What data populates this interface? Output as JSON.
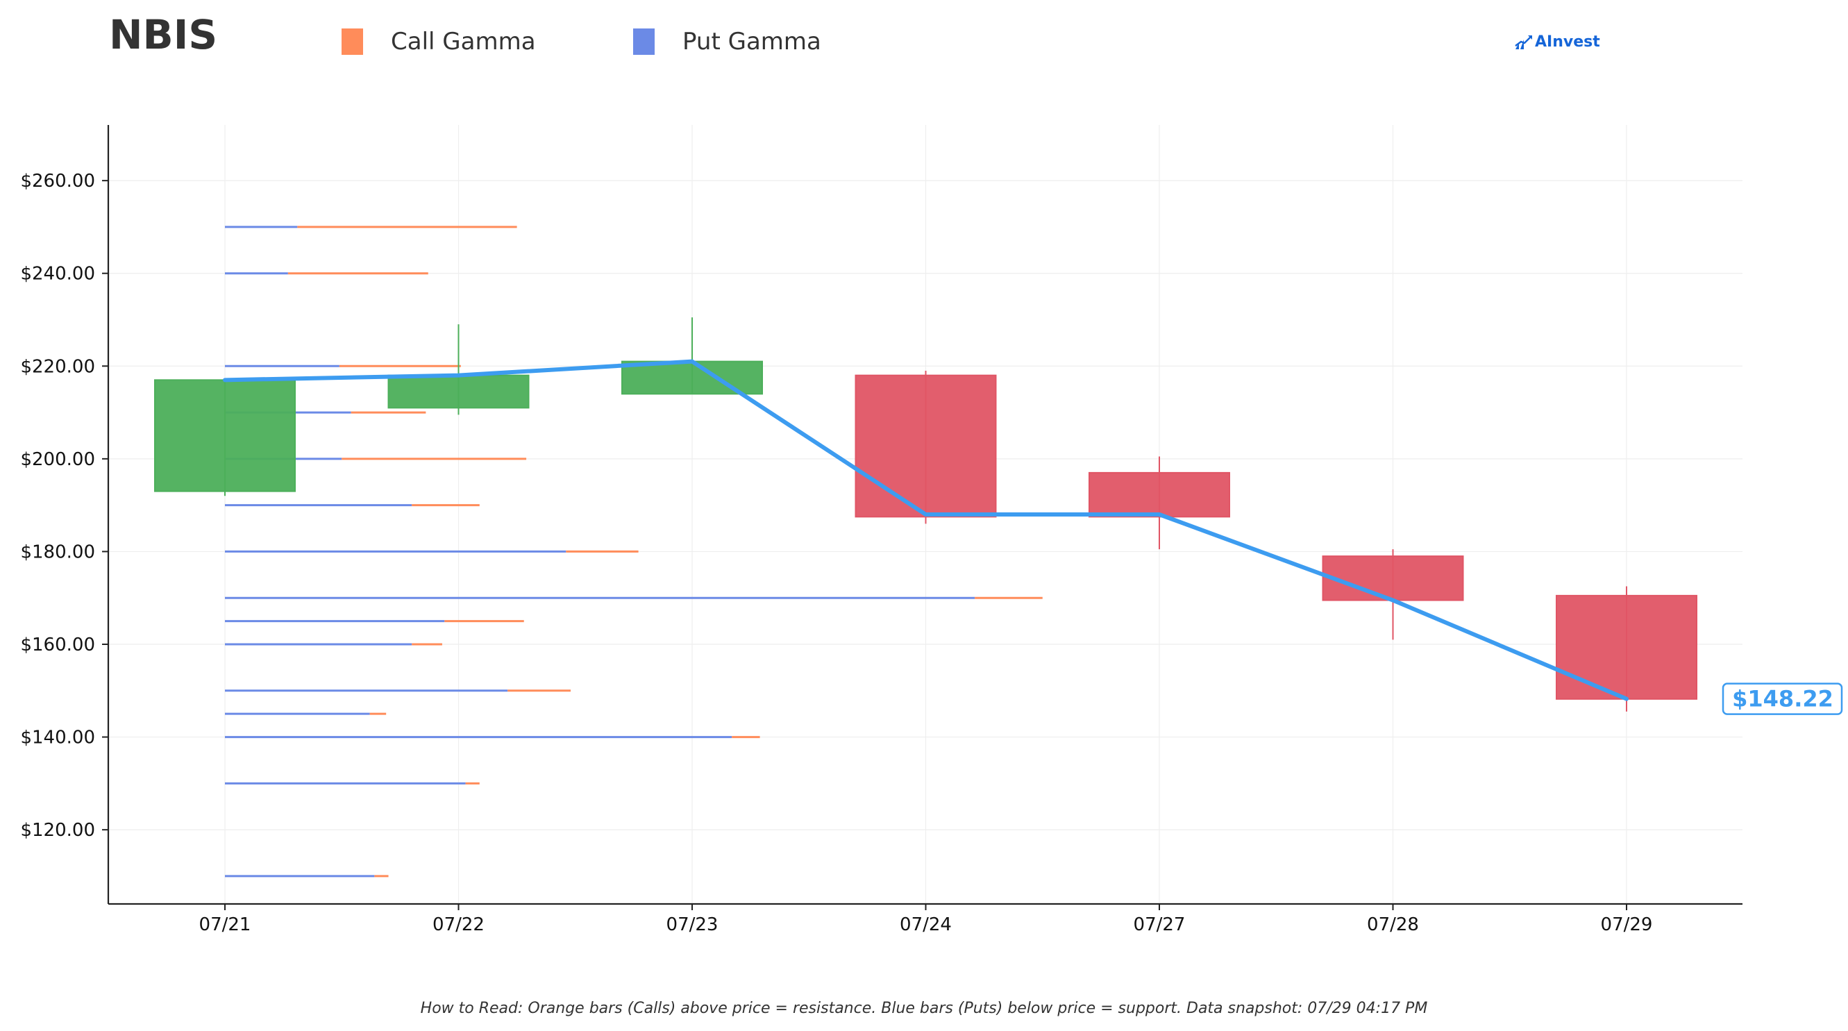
{
  "header": {
    "ticker": "NBIS",
    "brand": "AInvest"
  },
  "legend": [
    {
      "label": "Call Gamma",
      "color": "#ff8c5a"
    },
    {
      "label": "Put Gamma",
      "color": "#6b8ae6"
    }
  ],
  "footer": {
    "note": "How to Read: Orange bars (Calls) above price = resistance. Blue bars (Puts) below price = support. Data snapshot: 07/29 04:17 PM"
  },
  "colors": {
    "up": "#4caf5a",
    "down": "#e05565",
    "price_line": "#3d9cf0",
    "call": "#ff8c5a",
    "put": "#6b8ae6",
    "axis": "#222222",
    "grid": "#eeeeee",
    "brand": "#1565d8"
  },
  "chart_data": {
    "type": "candlestick",
    "categories": [
      "07/21",
      "07/22",
      "07/23",
      "07/24",
      "07/27",
      "07/28",
      "07/29"
    ],
    "ylim": [
      104,
      272
    ],
    "y_ticks": [
      120,
      140,
      160,
      180,
      200,
      220,
      240,
      260
    ],
    "y_tick_labels": [
      "$120.00",
      "$140.00",
      "$160.00",
      "$180.00",
      "$200.00",
      "$220.00",
      "$240.00",
      "$260.00"
    ],
    "grid": true,
    "legend_position": "top",
    "candles": [
      {
        "date": "07/21",
        "open": 193.0,
        "high": 217.0,
        "low": 192.0,
        "close": 217.0
      },
      {
        "date": "07/22",
        "open": 211.0,
        "high": 229.0,
        "low": 209.5,
        "close": 218.0
      },
      {
        "date": "07/23",
        "open": 214.0,
        "high": 230.5,
        "low": 214.0,
        "close": 221.0
      },
      {
        "date": "07/24",
        "open": 218.0,
        "high": 219.0,
        "low": 186.0,
        "close": 187.5
      },
      {
        "date": "07/27",
        "open": 197.0,
        "high": 200.5,
        "low": 180.5,
        "close": 187.5
      },
      {
        "date": "07/28",
        "open": 179.0,
        "high": 180.5,
        "low": 161.0,
        "close": 169.5
      },
      {
        "date": "07/29",
        "open": 170.5,
        "high": 172.5,
        "low": 145.5,
        "close": 148.2
      }
    ],
    "price_line": {
      "values": [
        217.0,
        218.0,
        221.0,
        188.0,
        188.0,
        169.5,
        148.22
      ],
      "last_label": "$148.22"
    },
    "gamma_unit_note": "bar lengths in category-width units from the 07/21 axis position",
    "gamma": [
      {
        "strike": 250,
        "put": 0.31,
        "call": 0.94
      },
      {
        "strike": 240,
        "put": 0.27,
        "call": 0.6
      },
      {
        "strike": 220,
        "put": 0.49,
        "call": 0.52
      },
      {
        "strike": 210,
        "put": 0.54,
        "call": 0.32
      },
      {
        "strike": 200,
        "put": 0.5,
        "call": 0.79
      },
      {
        "strike": 190,
        "put": 0.8,
        "call": 0.29
      },
      {
        "strike": 180,
        "put": 1.46,
        "call": 0.31
      },
      {
        "strike": 170,
        "put": 3.21,
        "call": 0.29
      },
      {
        "strike": 165,
        "put": 0.94,
        "call": 0.34
      },
      {
        "strike": 160,
        "put": 0.8,
        "call": 0.13
      },
      {
        "strike": 150,
        "put": 1.21,
        "call": 0.27
      },
      {
        "strike": 145,
        "put": 0.62,
        "call": 0.07
      },
      {
        "strike": 140,
        "put": 2.17,
        "call": 0.12
      },
      {
        "strike": 130,
        "put": 1.03,
        "call": 0.06
      },
      {
        "strike": 110,
        "put": 0.64,
        "call": 0.06
      }
    ]
  }
}
